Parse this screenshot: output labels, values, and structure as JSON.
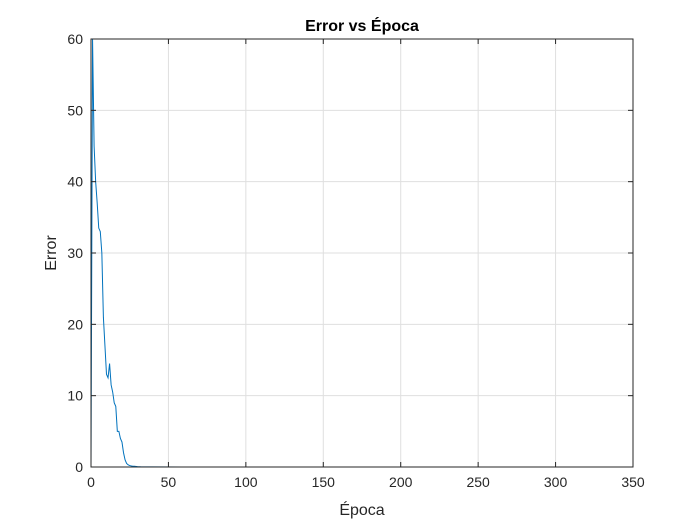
{
  "chart_data": {
    "type": "line",
    "title": "Error vs Época",
    "xlabel": "Época",
    "ylabel": "Error",
    "xlim": [
      0,
      350
    ],
    "ylim": [
      0,
      60
    ],
    "xticks": [
      0,
      50,
      100,
      150,
      200,
      250,
      300,
      350
    ],
    "yticks": [
      0,
      10,
      20,
      30,
      40,
      50,
      60
    ],
    "grid": true,
    "legend": "none",
    "series": [
      {
        "color": "#0072BD",
        "x": [
          0,
          1,
          2,
          3,
          4,
          5,
          6,
          7,
          8,
          9,
          10,
          11,
          12,
          13,
          14,
          15,
          16,
          17,
          18,
          19,
          20,
          21,
          22,
          23,
          24,
          25,
          26,
          27,
          28,
          30,
          32,
          34,
          40,
          60,
          100,
          150,
          200,
          250,
          300,
          350
        ],
        "y": [
          0,
          60,
          45,
          40,
          37,
          33.5,
          33,
          30,
          21,
          17,
          13,
          12.5,
          14.5,
          11.5,
          10.5,
          9,
          8.5,
          5,
          5,
          4,
          3.5,
          2,
          1,
          0.5,
          0.3,
          0.2,
          0.15,
          0.1,
          0.1,
          0.05,
          0.03,
          0.02,
          0.01,
          0,
          0,
          0,
          0,
          0,
          0,
          0
        ]
      }
    ]
  }
}
